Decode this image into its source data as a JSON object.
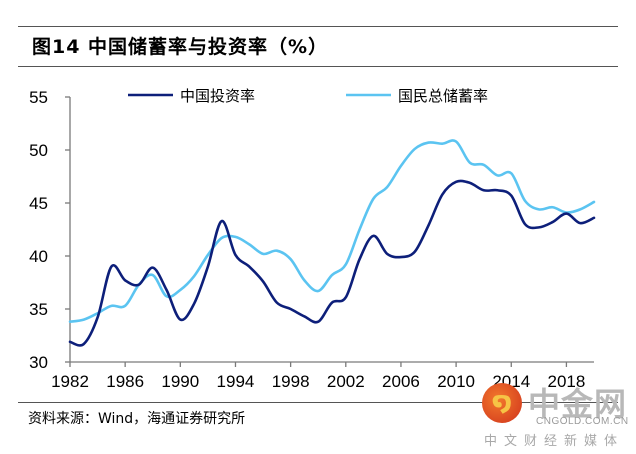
{
  "figure": {
    "title": "图14 中国储蓄率与投资率（%）",
    "source": "资料来源：Wind，海通证券研究所"
  },
  "watermark": {
    "logo_icon": "cngold-cloud-logo",
    "name": "中金网",
    "domain": "CNGOLD.COM.CN",
    "slogan": "中文财经新媒体"
  },
  "chart_data": {
    "type": "line",
    "title": "图14 中国储蓄率与投资率（%）",
    "xlabel": "",
    "ylabel": "",
    "ylim": [
      30,
      55
    ],
    "xlim": [
      1982,
      2020
    ],
    "yticks": [
      30,
      35,
      40,
      45,
      50,
      55
    ],
    "xticks": [
      1982,
      1986,
      1990,
      1994,
      1998,
      2002,
      2006,
      2010,
      2014,
      2018
    ],
    "grid": false,
    "legend_position": "top",
    "x": [
      1982,
      1983,
      1984,
      1985,
      1986,
      1987,
      1988,
      1989,
      1990,
      1991,
      1992,
      1993,
      1994,
      1995,
      1996,
      1997,
      1998,
      1999,
      2000,
      2001,
      2002,
      2003,
      2004,
      2005,
      2006,
      2007,
      2008,
      2009,
      2010,
      2011,
      2012,
      2013,
      2014,
      2015,
      2016,
      2017,
      2018,
      2019,
      2020
    ],
    "series": [
      {
        "name": "中国投资率",
        "color": "#0d1f7a",
        "values": [
          31.9,
          31.7,
          34.2,
          39.0,
          37.7,
          37.3,
          38.9,
          36.8,
          34.0,
          35.5,
          39.0,
          43.3,
          40.1,
          39.0,
          37.6,
          35.6,
          35.0,
          34.3,
          33.8,
          35.6,
          36.1,
          39.7,
          41.9,
          40.2,
          39.9,
          40.4,
          42.9,
          45.8,
          47.0,
          46.9,
          46.2,
          46.2,
          45.7,
          43.0,
          42.7,
          43.2,
          44.0,
          43.1,
          43.6
        ]
      },
      {
        "name": "国民总储蓄率",
        "color": "#5bc4f1",
        "values": [
          33.8,
          34.0,
          34.6,
          35.3,
          35.3,
          37.3,
          38.2,
          36.2,
          36.8,
          38.1,
          40.1,
          41.7,
          41.8,
          41.1,
          40.2,
          40.5,
          39.7,
          37.7,
          36.7,
          38.2,
          39.2,
          42.5,
          45.4,
          46.5,
          48.5,
          50.1,
          50.7,
          50.6,
          50.8,
          48.8,
          48.6,
          47.6,
          47.8,
          45.2,
          44.4,
          44.6,
          44.1,
          44.4,
          45.1
        ]
      }
    ]
  }
}
